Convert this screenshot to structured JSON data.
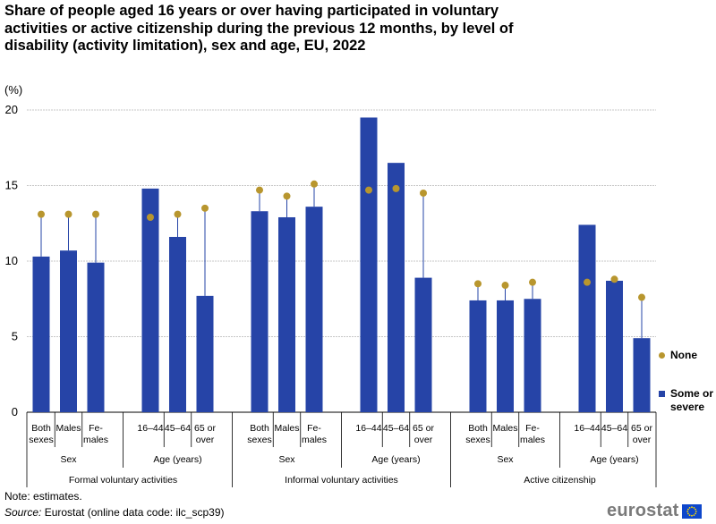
{
  "title": "Share of people aged 16 years or over having participated in voluntary activities or active citizenship during the previous 12 months, by level of disability (activity limitation), sex and age, EU, 2022",
  "unit": "(%)",
  "legend": {
    "none": "None",
    "some_or_severe": "Some or severe"
  },
  "colors": {
    "bar": "#2644A7",
    "dot": "#B8962E",
    "connector": "#2644A7",
    "grid": "#b5b5b5"
  },
  "note": "Note: estimates.",
  "source": {
    "label": "Source:",
    "text": "Eurostat (online data code: ilc_scp39)"
  },
  "logo": "eurostat",
  "chart_data": {
    "type": "bar",
    "ylim": [
      0,
      20
    ],
    "yticks": [
      0,
      5,
      10,
      15,
      20
    ],
    "groups": [
      {
        "label": "Formal voluntary activities",
        "subgroups": [
          {
            "label": "Sex",
            "categories": [
              "Both sexes",
              "Males",
              "Fe-males"
            ]
          },
          {
            "label": "Age (years)",
            "categories": [
              "16-44",
              "45-64",
              "65 or over"
            ]
          }
        ]
      },
      {
        "label": "Informal voluntary activities",
        "subgroups": [
          {
            "label": "Sex",
            "categories": [
              "Both sexes",
              "Males",
              "Fe-males"
            ]
          },
          {
            "label": "Age (years)",
            "categories": [
              "16-44",
              "45-64",
              "65 or over"
            ]
          }
        ]
      },
      {
        "label": "Active citizenship",
        "subgroups": [
          {
            "label": "Sex",
            "categories": [
              "Both sexes",
              "Males",
              "Fe-males"
            ]
          },
          {
            "label": "Age (years)",
            "categories": [
              "16-44",
              "45-64",
              "65 or over"
            ]
          }
        ]
      }
    ],
    "tick_labels": {
      "Both sexes": [
        "Both",
        "sexes"
      ],
      "Males": [
        "Males"
      ],
      "Fe-males": [
        "Fe-",
        "males"
      ],
      "16-44": [
        "16–44"
      ],
      "45-64": [
        "45–64"
      ],
      "65 or over": [
        "65 or",
        "over"
      ]
    },
    "series": [
      {
        "name": "Some or severe",
        "mark": "bar",
        "values": [
          10.3,
          10.7,
          9.9,
          14.8,
          11.6,
          7.7,
          13.3,
          12.9,
          13.6,
          19.5,
          16.5,
          8.9,
          7.4,
          7.4,
          7.5,
          12.4,
          8.7,
          4.9
        ]
      },
      {
        "name": "None",
        "mark": "dot",
        "values": [
          13.1,
          13.1,
          13.1,
          12.9,
          13.1,
          13.5,
          14.7,
          14.3,
          15.1,
          14.7,
          14.8,
          14.5,
          8.5,
          8.4,
          8.6,
          8.6,
          8.8,
          7.6
        ]
      }
    ]
  }
}
